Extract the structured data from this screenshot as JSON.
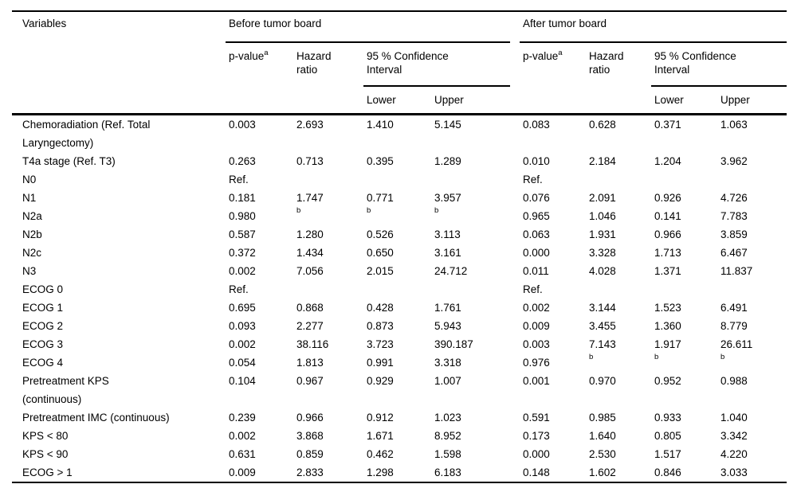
{
  "table": {
    "header": {
      "variables": "Variables",
      "before_group": "Before tumor board",
      "after_group": "After tumor board",
      "p_value": "p-value",
      "p_value_sup": "a",
      "hazard_ratio": "Hazard\nratio",
      "ci": "95 % Confidence\nInterval",
      "lower": "Lower",
      "upper": "Upper"
    },
    "footnote_marker": "b",
    "rows": [
      {
        "variable": "Chemoradiation (Ref. Total\nLaryngectomy)",
        "before": [
          "0.003",
          "2.693",
          "1.410",
          "5.145"
        ],
        "after": [
          "0.083",
          "0.628",
          "0.371",
          "1.063"
        ]
      },
      {
        "variable": "T4a stage (Ref. T3)",
        "before": [
          "0.263",
          "0.713",
          "0.395",
          "1.289"
        ],
        "after": [
          "0.010",
          "2.184",
          "1.204",
          "3.962"
        ]
      },
      {
        "variable": "N0",
        "before": [
          "Ref.",
          "",
          "",
          ""
        ],
        "after": [
          "Ref.",
          "",
          "",
          ""
        ]
      },
      {
        "variable": "N1",
        "before": [
          "0.181",
          "1.747",
          "0.771",
          "3.957"
        ],
        "after": [
          "0.076",
          "2.091",
          "0.926",
          "4.726"
        ]
      },
      {
        "variable": "N2a",
        "before": [
          "0.980",
          "b",
          "b",
          "b"
        ],
        "after": [
          "0.965",
          "1.046",
          "0.141",
          "7.783"
        ]
      },
      {
        "variable": "N2b",
        "before": [
          "0.587",
          "1.280",
          "0.526",
          "3.113"
        ],
        "after": [
          "0.063",
          "1.931",
          "0.966",
          "3.859"
        ]
      },
      {
        "variable": "N2c",
        "before": [
          "0.372",
          "1.434",
          "0.650",
          "3.161"
        ],
        "after": [
          "0.000",
          "3.328",
          "1.713",
          "6.467"
        ]
      },
      {
        "variable": "N3",
        "before": [
          "0.002",
          "7.056",
          "2.015",
          "24.712"
        ],
        "after": [
          "0.011",
          "4.028",
          "1.371",
          "11.837"
        ]
      },
      {
        "variable": "ECOG 0",
        "before": [
          "Ref.",
          "",
          "",
          ""
        ],
        "after": [
          "Ref.",
          "",
          "",
          ""
        ]
      },
      {
        "variable": "ECOG 1",
        "before": [
          "0.695",
          "0.868",
          "0.428",
          "1.761"
        ],
        "after": [
          "0.002",
          "3.144",
          "1.523",
          "6.491"
        ]
      },
      {
        "variable": "ECOG 2",
        "before": [
          "0.093",
          "2.277",
          "0.873",
          "5.943"
        ],
        "after": [
          "0.009",
          "3.455",
          "1.360",
          "8.779"
        ]
      },
      {
        "variable": "ECOG 3",
        "before": [
          "0.002",
          "38.116",
          "3.723",
          "390.187"
        ],
        "after": [
          "0.003",
          "7.143",
          "1.917",
          "26.611"
        ]
      },
      {
        "variable": "ECOG 4",
        "before": [
          "0.054",
          "1.813",
          "0.991",
          "3.318"
        ],
        "after": [
          "0.976",
          "b",
          "b",
          "b"
        ]
      },
      {
        "variable": "Pretreatment KPS\n(continuous)",
        "before": [
          "0.104",
          "0.967",
          "0.929",
          "1.007"
        ],
        "after": [
          "0.001",
          "0.970",
          "0.952",
          "0.988"
        ]
      },
      {
        "variable": "Pretreatment IMC (continuous)",
        "before": [
          "0.239",
          "0.966",
          "0.912",
          "1.023"
        ],
        "after": [
          "0.591",
          "0.985",
          "0.933",
          "1.040"
        ]
      },
      {
        "variable": "KPS < 80",
        "before": [
          "0.002",
          "3.868",
          "1.671",
          "8.952"
        ],
        "after": [
          "0.173",
          "1.640",
          "0.805",
          "3.342"
        ]
      },
      {
        "variable": "KPS < 90",
        "before": [
          "0.631",
          "0.859",
          "0.462",
          "1.598"
        ],
        "after": [
          "0.000",
          "2.530",
          "1.517",
          "4.220"
        ]
      },
      {
        "variable": "ECOG > 1",
        "before": [
          "0.009",
          "2.833",
          "1.298",
          "6.183"
        ],
        "after": [
          "0.148",
          "1.602",
          "0.846",
          "3.033"
        ]
      }
    ]
  }
}
